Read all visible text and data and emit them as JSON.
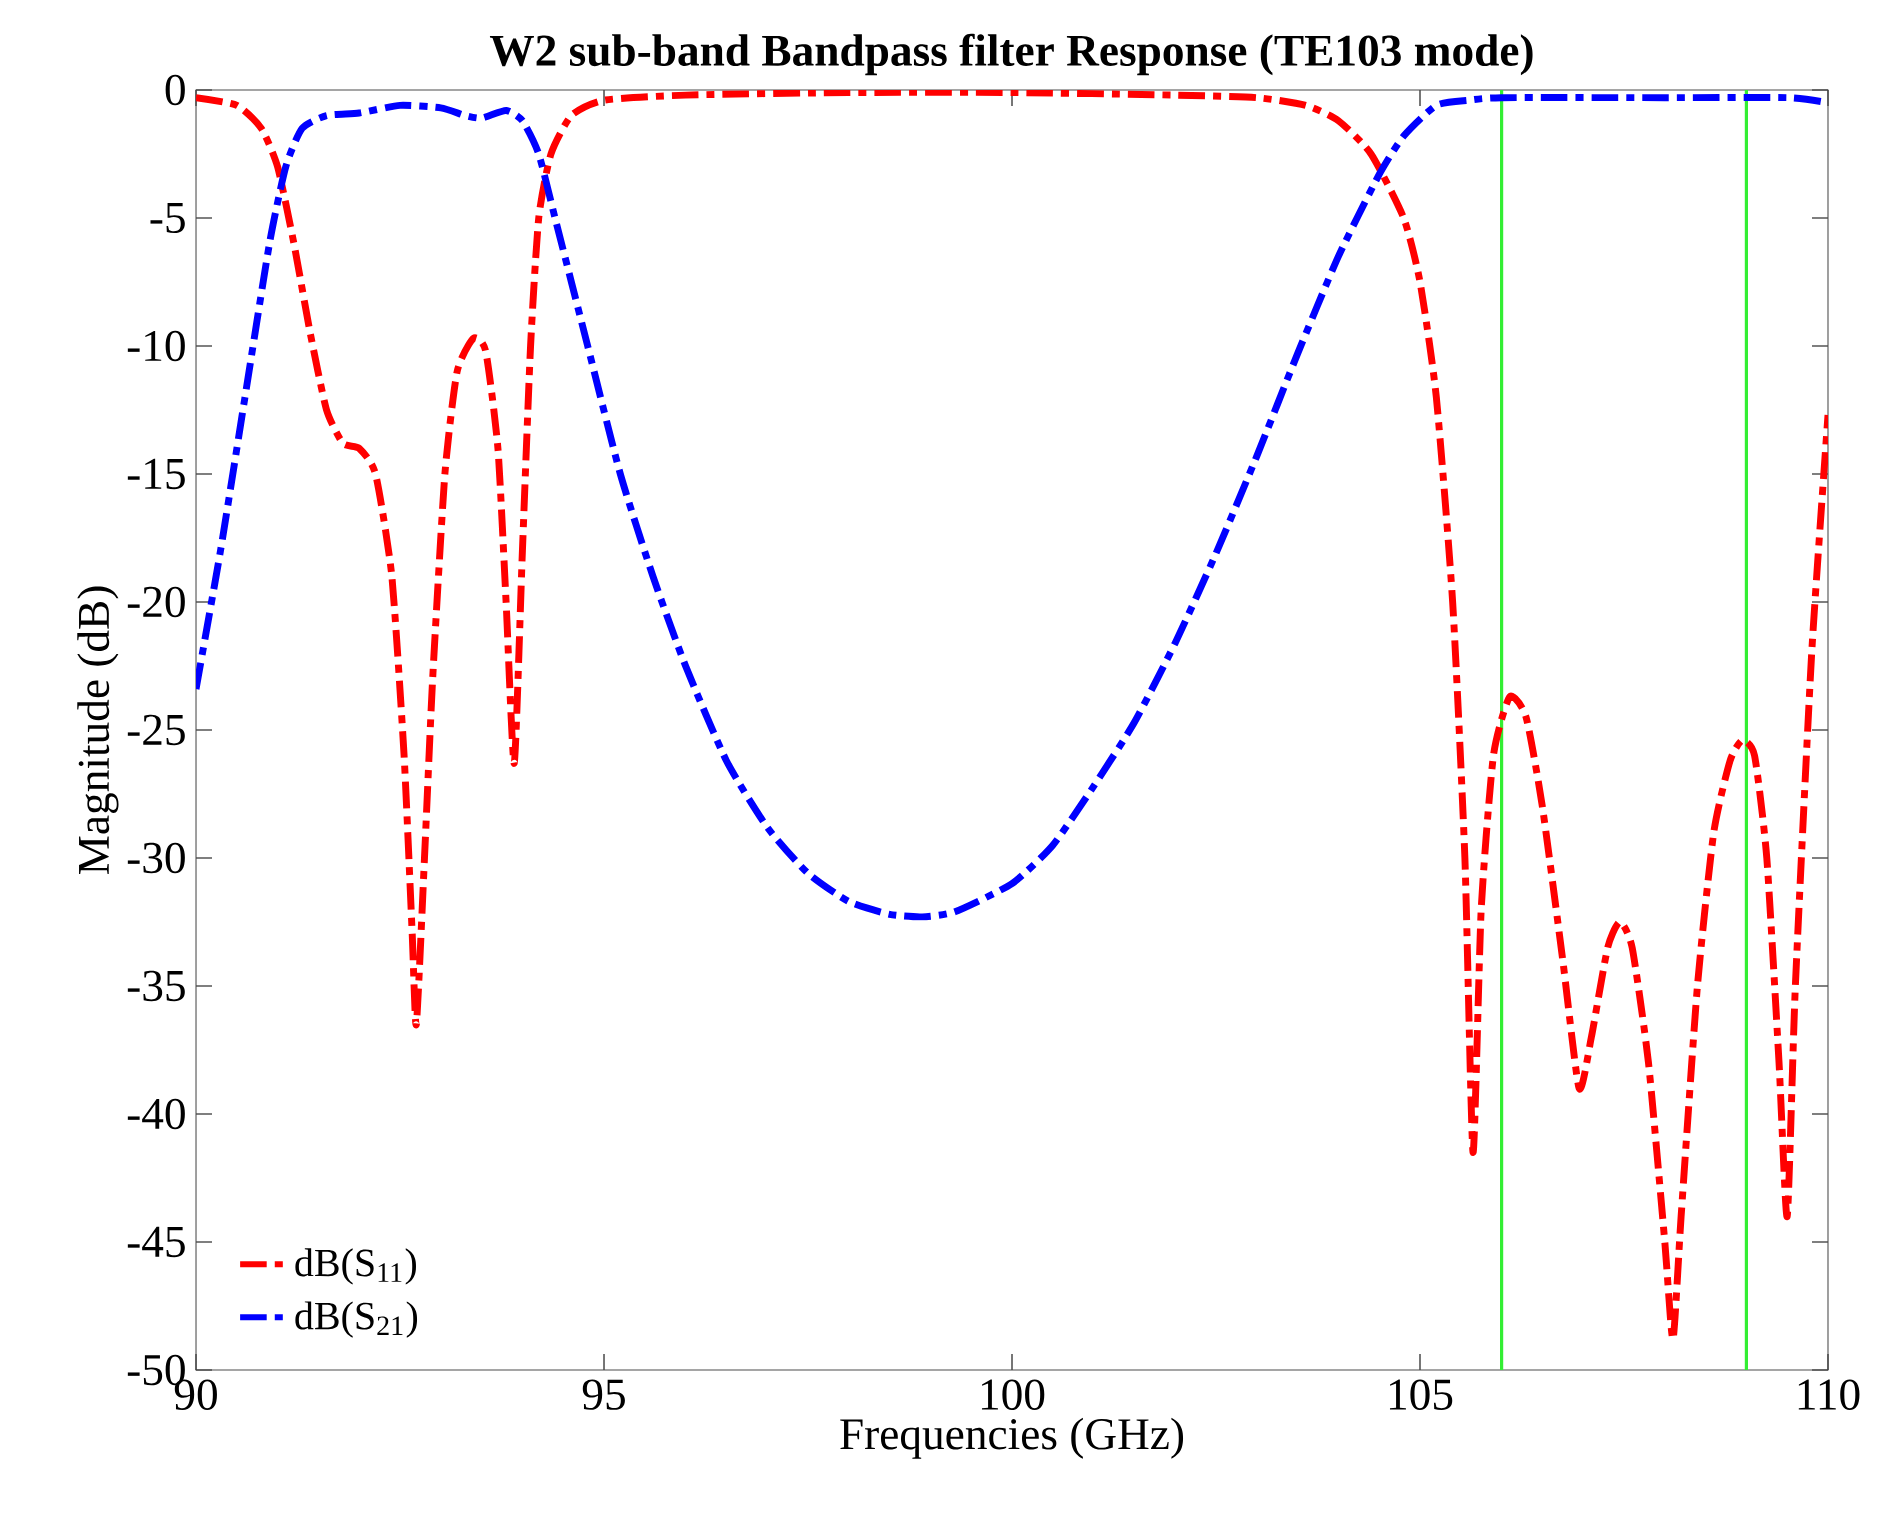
{
  "chart_data": {
    "type": "line",
    "title": "W2 sub-band Bandpass filter Response (TE103 mode)",
    "xlabel": "Frequencies (GHz)",
    "ylabel": "Magnitude (dB)",
    "xlim": [
      90,
      110
    ],
    "ylim": [
      -50,
      0
    ],
    "xticks": [
      90,
      95,
      100,
      105,
      110
    ],
    "yticks": [
      -50,
      -45,
      -40,
      -35,
      -30,
      -25,
      -20,
      -15,
      -10,
      -5,
      0
    ],
    "grid": false,
    "legend": "bottom left",
    "marker": "none",
    "line_style": "dashdot",
    "ref_lines": [
      {
        "axis": "x",
        "value": 106,
        "color": "#33ee33"
      },
      {
        "axis": "x",
        "value": 109,
        "color": "#33ee33"
      }
    ],
    "series": [
      {
        "name": "dB(S$_{11}$)",
        "color": "#ff0000",
        "x": [
          90,
          90.5,
          90.8,
          91.0,
          91.2,
          91.4,
          91.6,
          91.8,
          92.0,
          92.2,
          92.4,
          92.55,
          92.65,
          92.7,
          92.8,
          92.9,
          93.05,
          93.2,
          93.4,
          93.55,
          93.7,
          93.8,
          93.9,
          94.0,
          94.1,
          94.2,
          94.35,
          94.6,
          95,
          96,
          98,
          100,
          102,
          103,
          103.6,
          104,
          104.4,
          104.8,
          105.0,
          105.2,
          105.4,
          105.55,
          105.65,
          105.75,
          105.9,
          106.1,
          106.3,
          106.5,
          106.75,
          106.95,
          107.1,
          107.3,
          107.45,
          107.6,
          107.8,
          108.0,
          108.1,
          108.2,
          108.4,
          108.6,
          108.8,
          108.95,
          109.1,
          109.25,
          109.4,
          109.5,
          109.6,
          109.8,
          110
        ],
        "values": [
          -0.3,
          -0.6,
          -1.5,
          -3,
          -6,
          -9.5,
          -12.5,
          -13.8,
          -14,
          -15,
          -19,
          -26,
          -33,
          -36.5,
          -30,
          -23,
          -15,
          -11,
          -9.7,
          -10.2,
          -14,
          -20,
          -26.3,
          -18,
          -10,
          -5,
          -2.5,
          -1,
          -0.4,
          -0.2,
          -0.1,
          -0.1,
          -0.2,
          -0.3,
          -0.6,
          -1.2,
          -2.5,
          -5,
          -7.5,
          -12,
          -20,
          -30,
          -41.5,
          -32,
          -26,
          -23.7,
          -24.5,
          -28,
          -34,
          -39,
          -37,
          -33.5,
          -32.5,
          -33.5,
          -38,
          -45,
          -48.8,
          -44,
          -35,
          -29,
          -26.2,
          -25.4,
          -26,
          -30,
          -38,
          -44,
          -35,
          -22,
          -12.7
        ]
      },
      {
        "name": "dB(S$_{21}$)",
        "color": "#0000ff",
        "x": [
          90,
          90.3,
          90.6,
          90.9,
          91.1,
          91.3,
          91.6,
          92,
          92.5,
          93,
          93.3,
          93.5,
          93.8,
          94,
          94.2,
          94.4,
          94.8,
          95.2,
          95.6,
          96,
          96.5,
          97,
          97.5,
          98,
          98.5,
          98.9,
          99.3,
          100,
          100.5,
          101,
          101.5,
          102,
          102.5,
          103,
          103.5,
          104,
          104.5,
          104.8,
          105.2,
          105.6,
          106,
          108,
          109.5,
          110
        ],
        "values": [
          -23.4,
          -18,
          -12,
          -6,
          -3,
          -1.5,
          -1,
          -0.9,
          -0.6,
          -0.7,
          -1,
          -1.1,
          -0.8,
          -1.2,
          -2.5,
          -5,
          -10,
          -15,
          -19,
          -22.5,
          -26.2,
          -28.8,
          -30.6,
          -31.7,
          -32.2,
          -32.3,
          -32.1,
          -31,
          -29.5,
          -27.2,
          -24.7,
          -21.6,
          -18.1,
          -14.3,
          -10.3,
          -6.5,
          -3.3,
          -1.8,
          -0.6,
          -0.4,
          -0.3,
          -0.3,
          -0.3,
          -0.5
        ]
      }
    ]
  }
}
